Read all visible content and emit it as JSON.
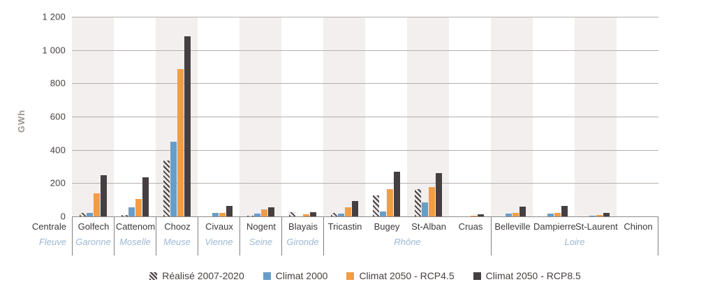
{
  "chart_data": {
    "type": "bar",
    "title": "",
    "ylabel": "GWh",
    "ylim": [
      0,
      1200
    ],
    "yticks": [
      1200,
      1000,
      800,
      600,
      400,
      200,
      0
    ],
    "ytick_labels": [
      "1 200",
      "1 000",
      "800",
      "600",
      "400",
      "200",
      "0"
    ],
    "grid": true,
    "legend_position": "bottom",
    "band_color": "#f2efee",
    "row_headers": {
      "centrale": "Centrale",
      "fleuve": "Fleuve"
    },
    "categories": [
      "Golfech",
      "Cattenom",
      "Chooz",
      "Civaux",
      "Nogent",
      "Blayais",
      "Tricastin",
      "Bugey",
      "St-Alban",
      "Cruas",
      "Belleville",
      "Dampierre",
      "St-Laurent",
      "Chinon"
    ],
    "rivers": [
      "Garonne",
      "Moselle",
      "Meuse",
      "Vienne",
      "Seine",
      "Gironde",
      "Rhône",
      "Rhône",
      "Rhône",
      "Rhône",
      "Loire",
      "Loire",
      "Loire",
      "Loire"
    ],
    "series": [
      {
        "name": "Réalisé 2007-2020",
        "style": "hatched",
        "color": "#463f42",
        "values": [
          23,
          8,
          334,
          2,
          3,
          25,
          20,
          125,
          163,
          0,
          0,
          0,
          0,
          0
        ]
      },
      {
        "name": "Climat 2000",
        "style": "solid",
        "color": "#689dca",
        "values": [
          19,
          54,
          450,
          22,
          15,
          0,
          16,
          29,
          83,
          0,
          15,
          15,
          5,
          0
        ]
      },
      {
        "name": "Climat 2050 - RCP4.5",
        "style": "solid",
        "color": "#f09d45",
        "values": [
          138,
          106,
          884,
          22,
          42,
          12,
          55,
          164,
          177,
          5,
          22,
          23,
          8,
          0
        ]
      },
      {
        "name": "Climat 2050 - RCP8.5",
        "style": "solid",
        "color": "#463f42",
        "values": [
          247,
          233,
          1084,
          65,
          55,
          27,
          94,
          268,
          262,
          11,
          57,
          65,
          22,
          0
        ]
      }
    ]
  }
}
